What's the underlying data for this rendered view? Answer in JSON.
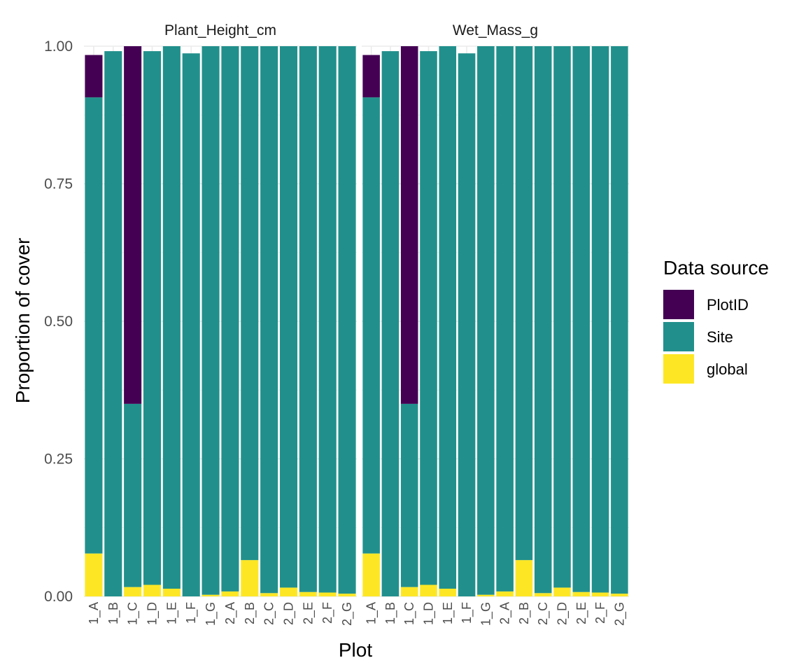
{
  "chart_data": {
    "type": "bar",
    "stacked": true,
    "xlabel": "Plot",
    "ylabel": "Proportion of cover",
    "ylim": [
      0,
      1
    ],
    "y_ticks": [
      "0.00",
      "0.25",
      "0.50",
      "0.75",
      "1.00"
    ],
    "y_tick_values": [
      0,
      0.25,
      0.5,
      0.75,
      1
    ],
    "categories": [
      "1_A",
      "1_B",
      "1_C",
      "1_D",
      "1_E",
      "1_F",
      "1_G",
      "2_A",
      "2_B",
      "2_C",
      "2_D",
      "2_E",
      "2_F",
      "2_G"
    ],
    "legend": {
      "title": "Data source",
      "position": "right",
      "entries": [
        {
          "label": "PlotID",
          "color": "#440154"
        },
        {
          "label": "Site",
          "color": "#21908C"
        },
        {
          "label": "global",
          "color": "#FDE725"
        }
      ]
    },
    "panels": [
      {
        "title": "Plant_Height_cm",
        "series": [
          {
            "name": "global",
            "color": "#FDE725",
            "values": [
              0.078,
              0.0,
              0.017,
              0.021,
              0.014,
              0.0,
              0.003,
              0.009,
              0.066,
              0.006,
              0.016,
              0.008,
              0.007,
              0.005
            ]
          },
          {
            "name": "Site",
            "color": "#21908C",
            "values": [
              0.829,
              0.991,
              0.333,
              0.97,
              0.986,
              0.987,
              0.997,
              0.991,
              0.934,
              0.994,
              0.984,
              0.992,
              0.993,
              0.995
            ]
          },
          {
            "name": "PlotID",
            "color": "#440154",
            "values": [
              0.077,
              0.0,
              0.65,
              0.0,
              0.0,
              0.0,
              0.0,
              0.0,
              0.0,
              0.0,
              0.0,
              0.0,
              0.0,
              0.0
            ]
          }
        ]
      },
      {
        "title": "Wet_Mass_g",
        "series": [
          {
            "name": "global",
            "color": "#FDE725",
            "values": [
              0.078,
              0.0,
              0.017,
              0.021,
              0.014,
              0.0,
              0.003,
              0.009,
              0.066,
              0.006,
              0.016,
              0.008,
              0.007,
              0.005
            ]
          },
          {
            "name": "Site",
            "color": "#21908C",
            "values": [
              0.829,
              0.991,
              0.333,
              0.97,
              0.986,
              0.987,
              0.997,
              0.991,
              0.934,
              0.994,
              0.984,
              0.992,
              0.993,
              0.995
            ]
          },
          {
            "name": "PlotID",
            "color": "#440154",
            "values": [
              0.077,
              0.0,
              0.65,
              0.0,
              0.0,
              0.0,
              0.0,
              0.0,
              0.0,
              0.0,
              0.0,
              0.0,
              0.0,
              0.0
            ]
          }
        ]
      }
    ]
  }
}
